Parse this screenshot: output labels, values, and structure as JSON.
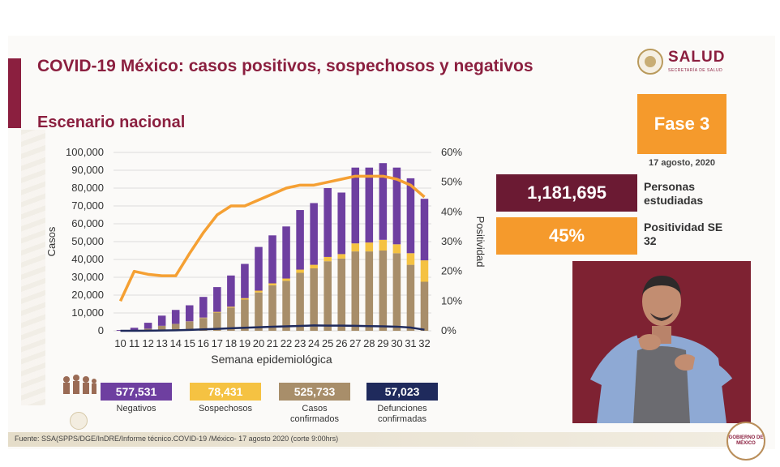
{
  "header": {
    "title": "COVID-19 México: casos positivos, sospechosos y negativos",
    "subtitle": "Escenario nacional"
  },
  "logo": {
    "name": "SALUD",
    "sub": "SECRETARÍA DE SALUD"
  },
  "phase": {
    "label": "Fase 3",
    "date": "17 agosto, 2020"
  },
  "stats": {
    "personas_value": "1,181,695",
    "personas_label": "Personas estudiadas",
    "positividad_value": "45%",
    "positividad_label": "Positividad SE 32"
  },
  "legend": [
    {
      "value": "577,531",
      "label": "Negativos",
      "color": "#6e3fa0"
    },
    {
      "value": "78,431",
      "label": "Sospechosos",
      "color": "#f5c242"
    },
    {
      "value": "525,733",
      "label": "Casos confirmados",
      "color": "#a88e6a"
    },
    {
      "value": "57,023",
      "label": "Defunciones confirmadas",
      "color": "#1f2a5c"
    }
  ],
  "footer": {
    "source": "Fuente: SSA(SPPS/DGE/InDRE/Informe técnico.COVID-19 /México- 17 agosto 2020 (corte 9:00hrs)"
  },
  "gob_seal": "GOBIERNO DE MÉXICO",
  "colors": {
    "brand": "#8b1f3f",
    "orange": "#f59a2c",
    "line": "#f5a033",
    "deaths_line": "#1f2a5c"
  },
  "chart_data": {
    "type": "bar",
    "stacked": true,
    "xlabel": "Semana epidemiológica",
    "ylabel": "Casos",
    "y2label": "Positividad",
    "ylim": [
      0,
      100000
    ],
    "y2lim": [
      0,
      60
    ],
    "yticks": [
      "0",
      "10,000",
      "20,000",
      "30,000",
      "40,000",
      "50,000",
      "60,000",
      "70,000",
      "80,000",
      "90,000",
      "100,000"
    ],
    "y2ticks": [
      "0%",
      "10%",
      "20%",
      "30%",
      "40%",
      "50%",
      "60%"
    ],
    "categories": [
      "10",
      "11",
      "12",
      "13",
      "14",
      "15",
      "16",
      "17",
      "18",
      "19",
      "20",
      "21",
      "22",
      "23",
      "24",
      "25",
      "26",
      "27",
      "28",
      "29",
      "30",
      "31",
      "32"
    ],
    "series": [
      {
        "name": "Casos confirmados",
        "color": "#a88e6a",
        "values": [
          50,
          400,
          1200,
          2800,
          3900,
          5200,
          7200,
          10200,
          13000,
          17500,
          21500,
          25500,
          28000,
          32500,
          35000,
          39000,
          40500,
          44500,
          44500,
          45000,
          43500,
          37000,
          27500
        ]
      },
      {
        "name": "Sospechosos",
        "color": "#f5c242",
        "values": [
          0,
          0,
          0,
          0,
          0,
          100,
          200,
          400,
          500,
          800,
          1000,
          1100,
          1300,
          1800,
          2000,
          2400,
          2500,
          4500,
          5000,
          6000,
          5000,
          6500,
          12000
        ]
      },
      {
        "name": "Negativos",
        "color": "#6e3fa0",
        "values": [
          400,
          1300,
          3300,
          5700,
          7800,
          9000,
          11600,
          13900,
          17500,
          19200,
          24500,
          26900,
          29200,
          33400,
          34600,
          38600,
          34500,
          42500,
          42000,
          43000,
          43000,
          42000,
          34500
        ]
      },
      {
        "name": "Defunciones",
        "type": "line",
        "color": "#1f2a5c",
        "axis": "y",
        "values": [
          0,
          0,
          50,
          150,
          300,
          500,
          800,
          1100,
          1400,
          1700,
          2000,
          2300,
          2500,
          2700,
          3000,
          2900,
          2900,
          2800,
          2600,
          2500,
          2300,
          1800,
          600
        ]
      },
      {
        "name": "Positividad",
        "type": "line",
        "color": "#f5a033",
        "axis": "y2",
        "values": [
          10,
          20,
          19,
          18.5,
          18.5,
          26,
          33,
          39,
          42,
          42,
          44,
          46,
          48,
          49,
          49,
          50,
          51,
          52,
          52,
          52,
          51,
          49,
          45
        ]
      }
    ]
  }
}
